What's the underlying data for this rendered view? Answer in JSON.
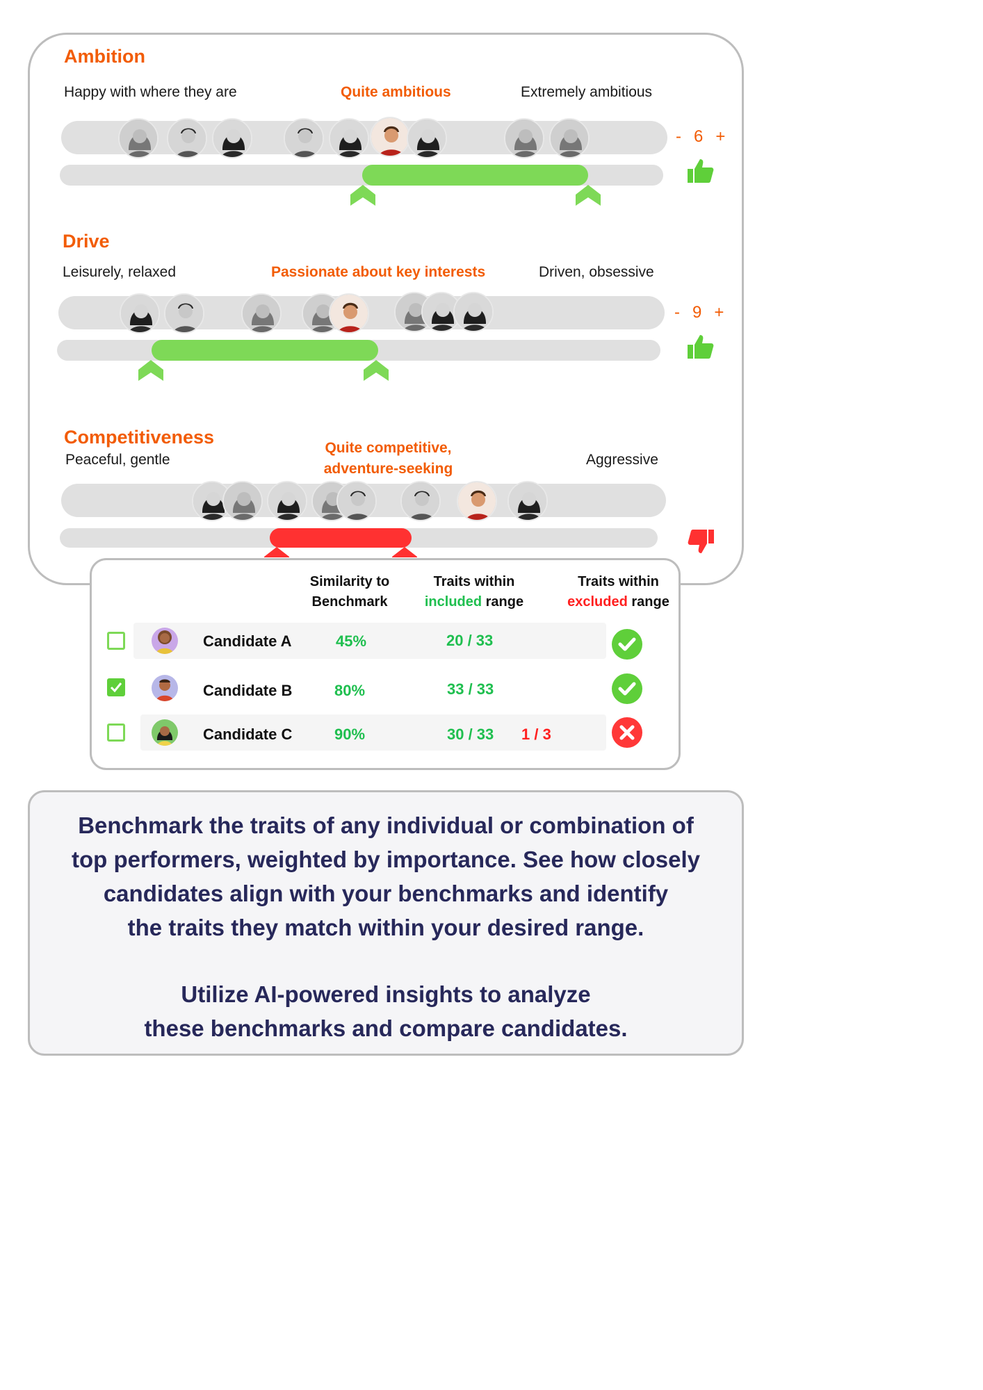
{
  "traits": [
    {
      "title": "Ambition",
      "low_label": "Happy with where they are",
      "mid_label": "Quite ambitious",
      "high_label": "Extremely ambitious",
      "weight": "6",
      "verdict": "thumbs-up",
      "range_status": "included"
    },
    {
      "title": "Drive",
      "low_label": "Leisurely, relaxed",
      "mid_label": "Passionate about key interests",
      "high_label": "Driven, obsessive",
      "weight": "9",
      "verdict": "thumbs-up",
      "range_status": "included"
    },
    {
      "title": "Competitiveness",
      "low_label": "Peaceful, gentle",
      "mid_label_line1": "Quite competitive,",
      "mid_label_line2": "adventure-seeking",
      "high_label": "Aggressive",
      "verdict": "thumbs-down",
      "range_status": "excluded"
    }
  ],
  "stepper": {
    "minus": "-",
    "plus": "+"
  },
  "table": {
    "headers": {
      "similarity_line1": "Similarity to",
      "similarity_line2": "Benchmark",
      "included_line1": "Traits within",
      "included_word": "included",
      "included_suffix": " range",
      "excluded_line1": "Traits within",
      "excluded_word": "excluded",
      "excluded_suffix": " range"
    },
    "rows": [
      {
        "name": "Candidate A",
        "similarity": "45%",
        "included": "20 / 33",
        "excluded": "",
        "checked": false,
        "status": "check"
      },
      {
        "name": "Candidate B",
        "similarity": "80%",
        "included": "33 / 33",
        "excluded": "",
        "checked": true,
        "status": "check"
      },
      {
        "name": "Candidate C",
        "similarity": "90%",
        "included": "30 / 33",
        "excluded": "1 / 3",
        "checked": false,
        "status": "x"
      }
    ]
  },
  "description": {
    "line1": "Benchmark the traits of any individual or combination of",
    "line2": "top performers, weighted by importance. See how closely",
    "line3": "candidates align with your benchmarks and identify",
    "line4": "the traits they match within your desired range.",
    "line5": "Utilize AI-powered insights to analyze",
    "line6": "these benchmarks and compare candidates."
  },
  "colors": {
    "accent_orange": "#f25c05",
    "included_green": "#7ed957",
    "excluded_red": "#ff3131",
    "text_navy": "#27285a"
  }
}
